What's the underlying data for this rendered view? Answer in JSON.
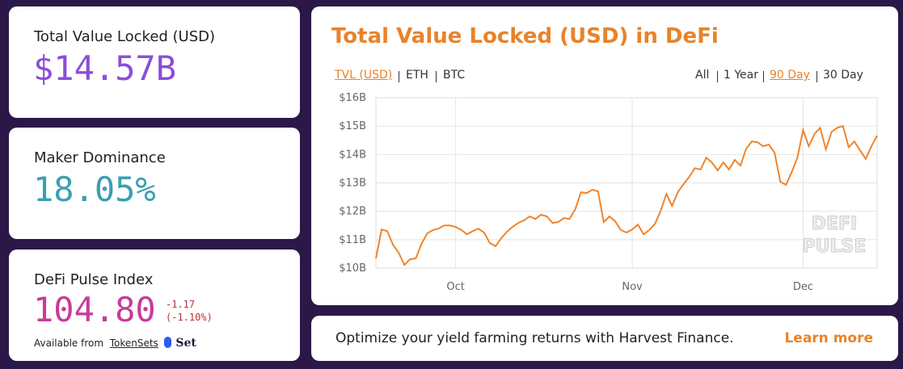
{
  "cards": [
    {
      "label": "Total Value Locked (USD)",
      "value": "$14.57B"
    },
    {
      "label": "Maker Dominance",
      "value": "18.05%"
    },
    {
      "label": "DeFi Pulse Index",
      "value": "104.80",
      "change": "-1.17",
      "change_pct": "(-1.10%)",
      "available": "Available from",
      "link": "TokenSets",
      "logo": "Set"
    }
  ],
  "tabs": {
    "units": [
      "TVL (USD)",
      "ETH",
      "BTC"
    ],
    "ranges": [
      "All",
      "1 Year",
      "90 Day",
      "30 Day"
    ]
  },
  "watermark": [
    "DEFI",
    "PULSE"
  ],
  "banner": {
    "text": "Optimize your yield farming returns with Harvest Finance.",
    "link": "Learn more"
  },
  "chart_data": {
    "type": "line",
    "title": "Total Value Locked (USD) in DeFi",
    "categories": [
      null,
      null,
      null,
      null,
      null,
      null,
      null,
      null,
      null,
      null,
      null,
      null,
      null,
      null,
      "Oct",
      null,
      null,
      null,
      null,
      null,
      null,
      null,
      null,
      null,
      null,
      null,
      null,
      null,
      null,
      null,
      null,
      null,
      null,
      null,
      null,
      null,
      null,
      null,
      null,
      null,
      null,
      null,
      null,
      null,
      null,
      "Nov",
      null,
      null,
      null,
      null,
      null,
      null,
      null,
      null,
      null,
      null,
      null,
      null,
      null,
      null,
      null,
      null,
      null,
      null,
      null,
      null,
      null,
      null,
      null,
      null,
      null,
      null,
      null,
      null,
      null,
      "Dec",
      null,
      null,
      null,
      null,
      null,
      null,
      null,
      null,
      null,
      null,
      null,
      null,
      null
    ],
    "series": [
      {
        "name": "TVL (USD)",
        "color": "#f0842c",
        "values": [
          10.34,
          11.36,
          11.3,
          10.82,
          10.54,
          10.11,
          10.31,
          10.34,
          10.85,
          11.22,
          11.34,
          11.39,
          11.5,
          11.5,
          11.45,
          11.34,
          11.19,
          11.3,
          11.39,
          11.25,
          10.88,
          10.77,
          11.05,
          11.28,
          11.45,
          11.59,
          11.68,
          11.82,
          11.73,
          11.88,
          11.82,
          11.59,
          11.62,
          11.76,
          11.73,
          12.07,
          12.67,
          12.64,
          12.76,
          12.7,
          11.62,
          11.82,
          11.65,
          11.34,
          11.25,
          11.36,
          11.53,
          11.19,
          11.34,
          11.56,
          12.02,
          12.61,
          12.19,
          12.67,
          12.95,
          13.21,
          13.52,
          13.47,
          13.89,
          13.72,
          13.44,
          13.72,
          13.47,
          13.81,
          13.61,
          14.2,
          14.46,
          14.43,
          14.29,
          14.35,
          14.06,
          13.04,
          12.93,
          13.38,
          13.89,
          14.86,
          14.29,
          14.72,
          14.94,
          14.18,
          14.8,
          14.94,
          15.0,
          14.26,
          14.46,
          14.15,
          13.84,
          14.29,
          14.66
        ]
      }
    ],
    "ylim": [
      10,
      16
    ],
    "yticks": [
      {
        "value": 10,
        "label": "$10B"
      },
      {
        "value": 11,
        "label": "$11B"
      },
      {
        "value": 12,
        "label": "$12B"
      },
      {
        "value": 13,
        "label": "$13B"
      },
      {
        "value": 14,
        "label": "$14B"
      },
      {
        "value": 15,
        "label": "$15B"
      },
      {
        "value": 16,
        "label": "$16B"
      }
    ],
    "grid": true
  }
}
